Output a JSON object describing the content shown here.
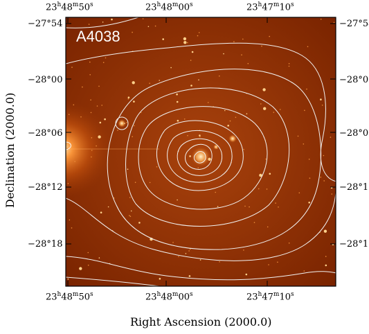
{
  "figure": {
    "field_label": "A4038",
    "x_axis_title": "Right Ascension (2000.0)",
    "y_axis_title": "Declination (2000.0)",
    "ra_ticks": [
      {
        "h": "23",
        "m": "48",
        "s": "50"
      },
      {
        "h": "23",
        "m": "48",
        "s": "00"
      },
      {
        "h": "23",
        "m": "47",
        "s": "10"
      }
    ],
    "dec_ticks": [
      "−27°54",
      "−28°00",
      "−28°06",
      "−28°12",
      "−28°18"
    ],
    "colors": {
      "sky_background": "#8a2a00",
      "sky_center": "#a63d08",
      "contour": "#f2f2f2",
      "bright_star": "#ffcf8a",
      "text_on_image": "#ffffff"
    }
  }
}
